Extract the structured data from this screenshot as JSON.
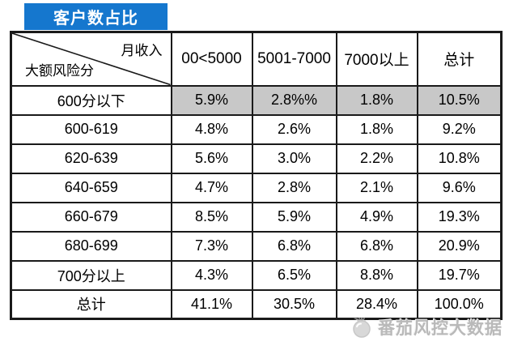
{
  "title": "客户数占比",
  "table": {
    "corner": {
      "top_label": "月收入",
      "bottom_label": "大额风险分"
    },
    "columns": [
      "00<5000",
      "5001-7000",
      "7000以上",
      "总计"
    ],
    "rows": [
      {
        "label": "600分以下",
        "values": [
          "5.9%",
          "2.8%%",
          "1.8%",
          "10.5%"
        ],
        "highlight": true
      },
      {
        "label": "600-619",
        "values": [
          "4.8%",
          "2.6%",
          "1.8%",
          "9.2%"
        ],
        "highlight": false
      },
      {
        "label": "620-639",
        "values": [
          "5.6%",
          "3.0%",
          "2.2%",
          "10.8%"
        ],
        "highlight": false
      },
      {
        "label": "640-659",
        "values": [
          "4.7%",
          "2.8%",
          "2.1%",
          "9.6%"
        ],
        "highlight": false
      },
      {
        "label": "660-679",
        "values": [
          "8.5%",
          "5.9%",
          "4.9%",
          "19.3%"
        ],
        "highlight": false
      },
      {
        "label": "680-699",
        "values": [
          "7.3%",
          "6.8%",
          "6.8%",
          "20.9%"
        ],
        "highlight": false
      },
      {
        "label": "700分以上",
        "values": [
          "4.3%",
          "6.5%",
          "8.8%",
          "19.7%"
        ],
        "highlight": false
      },
      {
        "label": "总计",
        "values": [
          "41.1%",
          "30.5%",
          "28.4%",
          "100.0%"
        ],
        "highlight": false
      }
    ]
  },
  "watermark": {
    "text": "番茄风控大数据",
    "icon": "tomato-logo"
  },
  "colors": {
    "accent_blue": "#1577CE",
    "highlight_gray": "#C8C8C8",
    "border_black": "#1A1A1A",
    "watermark_gray": "#B9B9B9"
  },
  "chart_data": {
    "type": "table",
    "title": "客户数占比",
    "col_axis_label": "月收入",
    "row_axis_label": "大额风险分",
    "columns": [
      "00<5000",
      "5001-7000",
      "7000以上",
      "总计"
    ],
    "row_labels": [
      "600分以下",
      "600-619",
      "620-639",
      "640-659",
      "660-679",
      "680-699",
      "700分以上",
      "总计"
    ],
    "values_pct": [
      [
        5.9,
        2.8,
        1.8,
        10.5
      ],
      [
        4.8,
        2.6,
        1.8,
        9.2
      ],
      [
        5.6,
        3.0,
        2.2,
        10.8
      ],
      [
        4.7,
        2.8,
        2.1,
        9.6
      ],
      [
        8.5,
        5.9,
        4.9,
        19.3
      ],
      [
        7.3,
        6.8,
        6.8,
        20.9
      ],
      [
        4.3,
        6.5,
        8.8,
        19.7
      ],
      [
        41.1,
        30.5,
        28.4,
        100.0
      ]
    ],
    "highlighted_row": "600分以下",
    "grid": true,
    "legend": "none"
  }
}
